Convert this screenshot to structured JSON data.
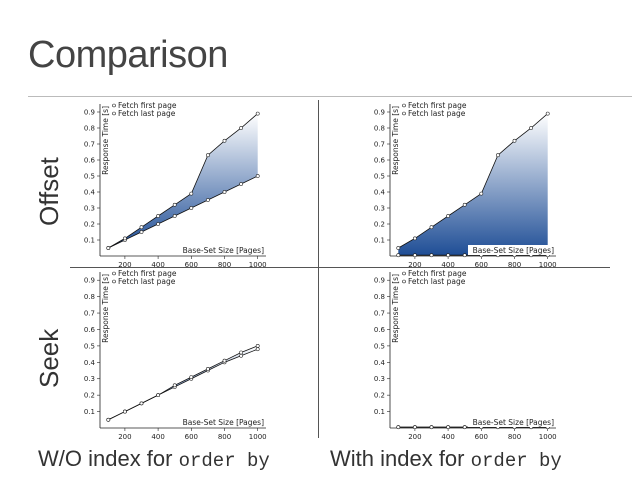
{
  "slide": {
    "title": "Comparison",
    "row_labels": [
      "Offset",
      "Seek"
    ],
    "col_labels": [
      {
        "text": "W/O index for ",
        "code": "order by"
      },
      {
        "text": "With index for ",
        "code": "order by"
      }
    ],
    "fill_colors": {
      "light": "#ffffff",
      "dark": "#1f4e96"
    },
    "line_color": "#111111"
  },
  "chart_data": [
    {
      "type": "area",
      "panel": "offset-without-index",
      "x": [
        100,
        200,
        300,
        400,
        500,
        600,
        700,
        800,
        900,
        1000
      ],
      "series": [
        {
          "name": "Fetch first page",
          "values": [
            0.05,
            0.1,
            0.15,
            0.2,
            0.25,
            0.3,
            0.35,
            0.4,
            0.45,
            0.5
          ]
        },
        {
          "name": "Fetch last page",
          "values": [
            0.05,
            0.11,
            0.18,
            0.25,
            0.32,
            0.39,
            0.63,
            0.72,
            0.8,
            0.89
          ]
        }
      ],
      "xlabel": "Base-Set Size [Pages]",
      "ylabel": "Response Time [s]",
      "xticks": [
        200,
        400,
        600,
        800,
        1000
      ],
      "yticks": [
        0.1,
        0.2,
        0.3,
        0.4,
        0.5,
        0.6,
        0.7,
        0.8,
        0.9
      ],
      "ytick_labels": [
        "0.1",
        "0.2",
        "0.3",
        "0.4",
        "0.5",
        "0.6",
        "0.7",
        "0.8",
        "0.9"
      ],
      "xlim": [
        50,
        1050
      ],
      "ylim": [
        0,
        0.95
      ],
      "legend": "top-left"
    },
    {
      "type": "area",
      "panel": "offset-with-index",
      "x": [
        100,
        200,
        300,
        400,
        500,
        600,
        700,
        800,
        900,
        1000
      ],
      "series": [
        {
          "name": "Fetch first page",
          "values": [
            0.005,
            0.005,
            0.005,
            0.005,
            0.005,
            0.005,
            0.005,
            0.005,
            0.005,
            0.005
          ]
        },
        {
          "name": "Fetch last page",
          "values": [
            0.05,
            0.11,
            0.18,
            0.25,
            0.32,
            0.39,
            0.63,
            0.72,
            0.8,
            0.89
          ]
        }
      ],
      "xlabel": "Base-Set Size [Pages]",
      "ylabel": "Response Time [s]",
      "xticks": [
        200,
        400,
        600,
        800,
        1000
      ],
      "yticks": [
        0.1,
        0.2,
        0.3,
        0.4,
        0.5,
        0.6,
        0.7,
        0.8,
        0.9
      ],
      "ytick_labels": [
        "0.1",
        "0.2",
        "0.3",
        "0.4",
        "0.5",
        "0.6",
        "0.7",
        "0.8",
        "0.9"
      ],
      "xlim": [
        50,
        1050
      ],
      "ylim": [
        0,
        0.95
      ],
      "legend": "top-left"
    },
    {
      "type": "area",
      "panel": "seek-without-index",
      "x": [
        100,
        200,
        300,
        400,
        500,
        600,
        700,
        800,
        900,
        1000
      ],
      "series": [
        {
          "name": "Fetch first page",
          "values": [
            0.05,
            0.1,
            0.15,
            0.2,
            0.25,
            0.3,
            0.35,
            0.4,
            0.44,
            0.48
          ]
        },
        {
          "name": "Fetch last page",
          "values": [
            0.05,
            0.1,
            0.15,
            0.2,
            0.26,
            0.31,
            0.36,
            0.41,
            0.46,
            0.5
          ]
        }
      ],
      "xlabel": "Base-Set Size [Pages]",
      "ylabel": "Response Time [s]",
      "xticks": [
        200,
        400,
        600,
        800,
        1000
      ],
      "yticks": [
        0.1,
        0.2,
        0.3,
        0.4,
        0.5,
        0.6,
        0.7,
        0.8,
        0.9
      ],
      "ytick_labels": [
        "0.1",
        "0.2",
        "0.3",
        "0.4",
        "0.5",
        "0.6",
        "0.7",
        "0.8",
        "0.9"
      ],
      "xlim": [
        50,
        1050
      ],
      "ylim": [
        0,
        0.95
      ],
      "legend": "top-left"
    },
    {
      "type": "area",
      "panel": "seek-with-index",
      "x": [
        100,
        200,
        300,
        400,
        500,
        600,
        700,
        800,
        900,
        1000
      ],
      "series": [
        {
          "name": "Fetch first page",
          "values": [
            0.005,
            0.005,
            0.005,
            0.005,
            0.005,
            0.005,
            0.005,
            0.005,
            0.005,
            0.005
          ]
        },
        {
          "name": "Fetch last page",
          "values": [
            0.005,
            0.005,
            0.005,
            0.005,
            0.005,
            0.005,
            0.005,
            0.005,
            0.005,
            0.005
          ]
        }
      ],
      "xlabel": "Base-Set Size [Pages]",
      "ylabel": "Response Time [s]",
      "xticks": [
        200,
        400,
        600,
        800,
        1000
      ],
      "yticks": [
        0.1,
        0.2,
        0.3,
        0.4,
        0.5,
        0.6,
        0.7,
        0.8,
        0.9
      ],
      "ytick_labels": [
        "0.1",
        "0.2",
        "0.3",
        "0.4",
        "0.5",
        "0.6",
        "0.7",
        "0.8",
        "0.9"
      ],
      "xlim": [
        50,
        1050
      ],
      "ylim": [
        0,
        0.95
      ],
      "legend": "top-left"
    }
  ]
}
